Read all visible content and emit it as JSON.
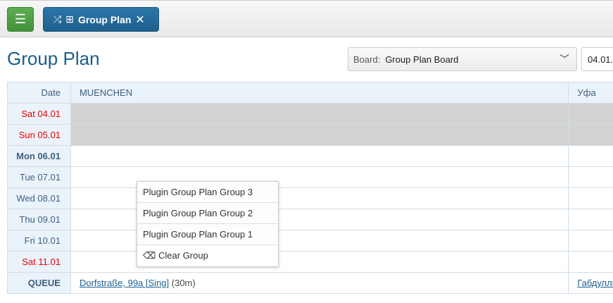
{
  "toolbar": {
    "menu_icon": "hamburger-icon",
    "tab": {
      "label": "Group Plan",
      "icons": [
        "shuffle-icon",
        "grid-icon",
        "close-icon"
      ]
    }
  },
  "page": {
    "title": "Group Plan"
  },
  "board": {
    "label": "Board:",
    "value": "Group Plan Board"
  },
  "date_field": {
    "value": "04.01."
  },
  "table": {
    "headers": [
      "Date",
      "MUENCHEN",
      "Уфа"
    ],
    "rows": [
      {
        "date": "Sat 04.01",
        "weekend": true
      },
      {
        "date": "Sun 05.01",
        "weekend": true
      },
      {
        "date": "Mon 06.01",
        "today": true
      },
      {
        "date": "Tue 07.01"
      },
      {
        "date": "Wed 08.01"
      },
      {
        "date": "Thu 09.01"
      },
      {
        "date": "Fri 10.01"
      },
      {
        "date": "Sat 11.01",
        "red": true
      }
    ],
    "queue": {
      "label": "QUEUE",
      "link": "Dorfstraße, 99a [Sing]",
      "duration": "(30m)",
      "link2": "Габдулли"
    }
  },
  "context_menu": {
    "items": [
      "Plugin Group Plan Group 3",
      "Plugin Group Plan Group 2",
      "Plugin Group Plan Group 1"
    ],
    "clear": "Clear Group"
  }
}
